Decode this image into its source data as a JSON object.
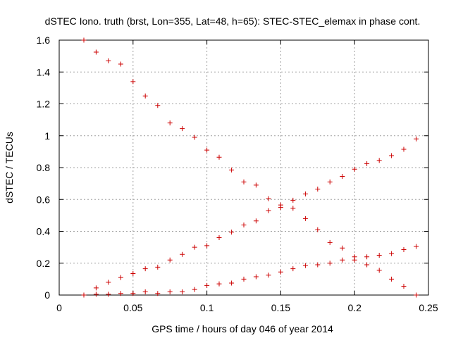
{
  "chart_data": {
    "type": "scatter",
    "title": "dSTEC Iono. truth (brst, Lon=355, Lat=48, h=65): STEC-STEC_elemax in phase cont.",
    "xlabel": "GPS time / hours of day 046 of year 2014",
    "ylabel": "dSTEC  / TECUs",
    "xlim": [
      0,
      0.25
    ],
    "ylim": [
      0,
      1.6
    ],
    "xticks": [
      0,
      0.05,
      0.1,
      0.15,
      0.2,
      0.25
    ],
    "xtick_labels": [
      "0",
      "0.05",
      "0.1",
      "0.15",
      "0.2",
      "0.25"
    ],
    "yticks": [
      0,
      0.2,
      0.4,
      0.6,
      0.8,
      1,
      1.2,
      1.4,
      1.6
    ],
    "ytick_labels": [
      "0",
      "0.2",
      "0.4",
      "0.6",
      "0.8",
      "1",
      "1.2",
      "1.4",
      "1.6"
    ],
    "grid": true,
    "marker": "+",
    "marker_color": "#cc0000",
    "series": [
      {
        "points": [
          [
            0.0167,
            1.6
          ],
          [
            0.025,
            1.525
          ],
          [
            0.0333,
            1.47
          ],
          [
            0.0417,
            1.45
          ],
          [
            0.05,
            1.34
          ],
          [
            0.0583,
            1.25
          ],
          [
            0.0667,
            1.19
          ],
          [
            0.075,
            1.08
          ],
          [
            0.0833,
            1.045
          ],
          [
            0.0917,
            0.99
          ],
          [
            0.1,
            0.91
          ],
          [
            0.1083,
            0.865
          ],
          [
            0.1167,
            0.785
          ],
          [
            0.125,
            0.71
          ],
          [
            0.1333,
            0.69
          ],
          [
            0.1417,
            0.605
          ],
          [
            0.15,
            0.565
          ],
          [
            0.1583,
            0.545
          ],
          [
            0.1667,
            0.48
          ],
          [
            0.175,
            0.41
          ],
          [
            0.1833,
            0.33
          ],
          [
            0.1917,
            0.295
          ],
          [
            0.2,
            0.24
          ],
          [
            0.2083,
            0.19
          ],
          [
            0.2167,
            0.155
          ],
          [
            0.225,
            0.1
          ],
          [
            0.2333,
            0.055
          ],
          [
            0.2417,
            0.0
          ]
        ]
      },
      {
        "points": [
          [
            0.025,
            0.045
          ],
          [
            0.0333,
            0.08
          ],
          [
            0.0417,
            0.11
          ],
          [
            0.05,
            0.135
          ],
          [
            0.0583,
            0.165
          ],
          [
            0.0667,
            0.175
          ],
          [
            0.075,
            0.22
          ],
          [
            0.0833,
            0.255
          ],
          [
            0.0917,
            0.3
          ],
          [
            0.1,
            0.31
          ],
          [
            0.1083,
            0.36
          ],
          [
            0.1167,
            0.395
          ],
          [
            0.125,
            0.44
          ],
          [
            0.1333,
            0.465
          ],
          [
            0.1417,
            0.53
          ],
          [
            0.15,
            0.55
          ],
          [
            0.1583,
            0.595
          ],
          [
            0.1667,
            0.635
          ],
          [
            0.175,
            0.665
          ],
          [
            0.1833,
            0.71
          ],
          [
            0.1917,
            0.745
          ],
          [
            0.2,
            0.79
          ],
          [
            0.2083,
            0.825
          ],
          [
            0.2167,
            0.845
          ],
          [
            0.225,
            0.875
          ],
          [
            0.2333,
            0.915
          ],
          [
            0.2417,
            0.98
          ]
        ]
      },
      {
        "points": [
          [
            0.0167,
            0.0
          ],
          [
            0.025,
            0.005
          ],
          [
            0.0333,
            0.005
          ],
          [
            0.0417,
            0.01
          ],
          [
            0.05,
            0.01
          ],
          [
            0.0583,
            0.02
          ],
          [
            0.0667,
            0.01
          ],
          [
            0.075,
            0.02
          ],
          [
            0.0833,
            0.02
          ],
          [
            0.0917,
            0.035
          ],
          [
            0.1,
            0.06
          ],
          [
            0.1083,
            0.07
          ],
          [
            0.1167,
            0.075
          ],
          [
            0.125,
            0.1
          ],
          [
            0.1333,
            0.115
          ],
          [
            0.1417,
            0.125
          ],
          [
            0.15,
            0.145
          ],
          [
            0.1583,
            0.165
          ],
          [
            0.1667,
            0.185
          ],
          [
            0.175,
            0.19
          ],
          [
            0.1833,
            0.2
          ],
          [
            0.1917,
            0.22
          ],
          [
            0.2,
            0.22
          ],
          [
            0.2083,
            0.24
          ],
          [
            0.2167,
            0.25
          ],
          [
            0.225,
            0.26
          ],
          [
            0.2333,
            0.285
          ],
          [
            0.2417,
            0.305
          ]
        ]
      }
    ]
  }
}
